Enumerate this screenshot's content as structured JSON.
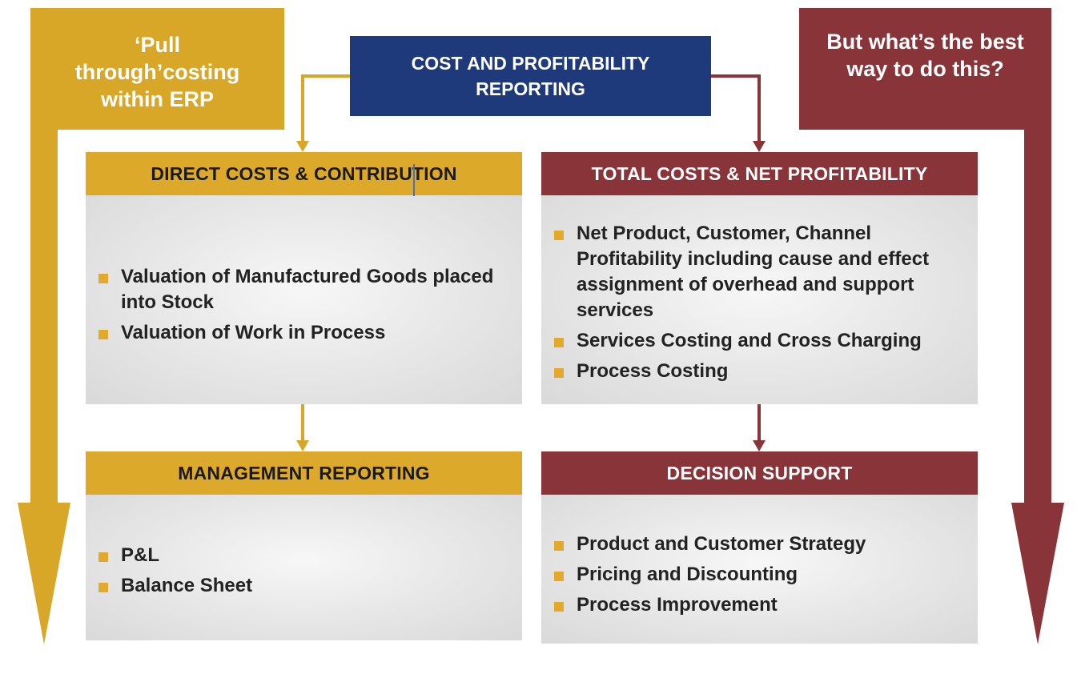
{
  "top": {
    "left_callout": "‘Pull through’costing within ERP",
    "center_box": "COST AND PROFITABILITY REPORTING",
    "right_callout": "But what’s the best way to do this?"
  },
  "panels": {
    "direct": {
      "title": "DIRECT COSTS & CONTRIBUTION",
      "items": [
        "Valuation of Manufactured Goods placed into Stock",
        "Valuation of Work in Process"
      ]
    },
    "total": {
      "title": "TOTAL COSTS & NET PROFITABILITY",
      "items": [
        "Net Product, Customer, Channel Profitability including cause and effect assignment of overhead and support services",
        "Services Costing and Cross Charging",
        "Process Costing"
      ]
    },
    "management": {
      "title": "MANAGEMENT REPORTING",
      "items": [
        "P&L",
        "Balance Sheet"
      ]
    },
    "decision": {
      "title": "DECISION SUPPORT",
      "items": [
        "Product and Customer Strategy",
        "Pricing and Discounting",
        "Process Improvement"
      ]
    }
  },
  "colors": {
    "gold": "#DDA92A",
    "maroon": "#893439",
    "navy": "#1F3A7A",
    "bullet": "#E3A92B",
    "panel_gray": "#E3E3E3"
  }
}
